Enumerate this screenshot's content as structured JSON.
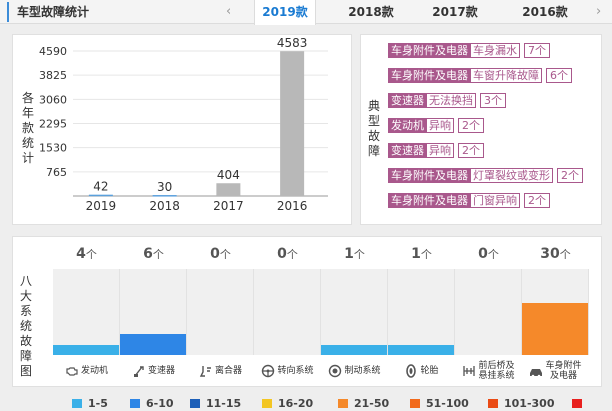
{
  "header": {
    "title": "车型故障统计",
    "tabs": [
      {
        "label": "2019款",
        "active": true
      },
      {
        "label": "2018款",
        "active": false
      },
      {
        "label": "2017款",
        "active": false
      },
      {
        "label": "2016款",
        "active": false
      }
    ],
    "prev_icon": "chevron-left-icon",
    "next_icon": "chevron-right-icon"
  },
  "chart_panel": {
    "ylabel_chars": [
      "各",
      "年",
      "款",
      "统",
      "计"
    ]
  },
  "chart_data": {
    "type": "bar",
    "categories": [
      "2019",
      "2018",
      "2017",
      "2016"
    ],
    "values": [
      42,
      30,
      404,
      4583
    ],
    "yticks": [
      765,
      1530,
      2295,
      3060,
      3825,
      4590
    ],
    "ylim": [
      0,
      4590
    ],
    "ylabel": "各年款统计",
    "bar_colors": [
      "#5aa0dc",
      "#5aa0dc",
      "#b8b8b8",
      "#b8b8b8"
    ],
    "grid": true
  },
  "faults_panel": {
    "label_chars": [
      "典",
      "型",
      "故",
      "障"
    ],
    "items": [
      {
        "category": "车身附件及电器",
        "fault": "车身漏水",
        "count": "7个"
      },
      {
        "category": "车身附件及电器",
        "fault": "车窗升降故障",
        "count": "6个"
      },
      {
        "category": "变速器",
        "fault": "无法换挡",
        "count": "3个"
      },
      {
        "category": "发动机",
        "fault": "异响",
        "count": "2个"
      },
      {
        "category": "变速器",
        "fault": "异响",
        "count": "2个"
      },
      {
        "category": "车身附件及电器",
        "fault": "灯罩裂纹或变形",
        "count": "2个"
      },
      {
        "category": "车身附件及电器",
        "fault": "门窗异响",
        "count": "2个"
      }
    ]
  },
  "systems_panel": {
    "label_chars": [
      "八",
      "大",
      "系",
      "统",
      "故",
      "障",
      "图"
    ],
    "unit": "个",
    "max_value": 30,
    "systems": [
      {
        "name": "发动机",
        "count": 4,
        "color": "#3ab0e8",
        "level": 0.12,
        "icon": "engine-icon"
      },
      {
        "name": "变速器",
        "count": 6,
        "color": "#2e86e6",
        "level": 0.24,
        "icon": "gearbox-icon"
      },
      {
        "name": "离合器",
        "count": 0,
        "color": "#3ab0e8",
        "level": 0,
        "icon": "clutch-icon"
      },
      {
        "name": "转向系统",
        "count": 0,
        "color": "#3ab0e8",
        "level": 0,
        "icon": "steering-wheel-icon"
      },
      {
        "name": "制动系统",
        "count": 1,
        "color": "#3ab0e8",
        "level": 0.12,
        "icon": "brake-icon"
      },
      {
        "name": "轮胎",
        "count": 1,
        "color": "#3ab0e8",
        "level": 0.12,
        "icon": "tire-icon"
      },
      {
        "name": "前后桥及\n悬挂系统",
        "count": 0,
        "color": "#3ab0e8",
        "level": 0,
        "icon": "axle-icon"
      },
      {
        "name": "车身附件\n及电器",
        "count": 30,
        "color": "#f5892a",
        "level": 0.6,
        "icon": "car-body-icon"
      }
    ]
  },
  "legend": [
    {
      "label": "1-5",
      "color": "#3ab0e8"
    },
    {
      "label": "6-10",
      "color": "#2e86e6"
    },
    {
      "label": "11-15",
      "color": "#1c5fb8"
    },
    {
      "label": "16-20",
      "color": "#f3c623"
    },
    {
      "label": "21-50",
      "color": "#f5892a"
    },
    {
      "label": "51-100",
      "color": "#f26a1b"
    },
    {
      "label": "101-300",
      "color": "#ea4a14"
    },
    {
      "label": "",
      "color": "#e8201e"
    }
  ]
}
